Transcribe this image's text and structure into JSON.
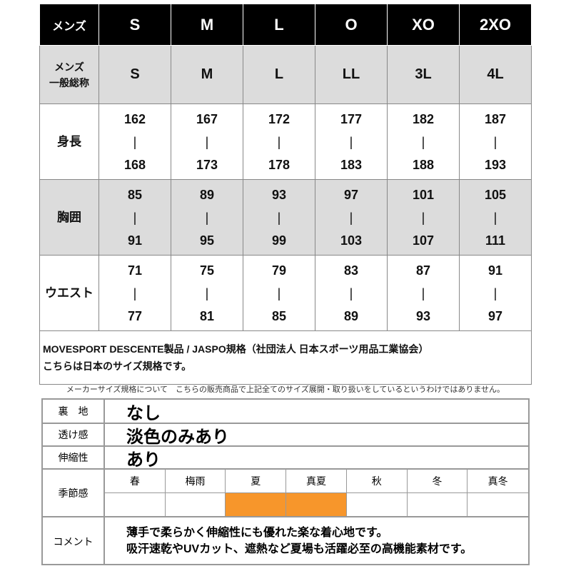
{
  "size_table": {
    "header": {
      "label": "メンズ",
      "sizes": [
        "S",
        "M",
        "L",
        "O",
        "XO",
        "2XO"
      ]
    },
    "general": {
      "label_line1": "メンズ",
      "label_line2": "一般総称",
      "sizes": [
        "S",
        "M",
        "L",
        "LL",
        "3L",
        "4L"
      ]
    },
    "rows": [
      {
        "label": "身長",
        "min": [
          "162",
          "167",
          "172",
          "177",
          "182",
          "187"
        ],
        "max": [
          "168",
          "173",
          "178",
          "183",
          "188",
          "193"
        ]
      },
      {
        "label": "胸囲",
        "min": [
          "85",
          "89",
          "93",
          "97",
          "101",
          "105"
        ],
        "max": [
          "91",
          "95",
          "99",
          "103",
          "107",
          "111"
        ]
      },
      {
        "label": "ウエスト",
        "min": [
          "71",
          "75",
          "79",
          "83",
          "87",
          "91"
        ],
        "max": [
          "77",
          "81",
          "85",
          "89",
          "93",
          "97"
        ]
      }
    ],
    "separator": "|",
    "note_line1": "MOVESPORT DESCENTE製品 / JASPO規格（社団法人 日本スポーツ用品工業協会）",
    "note_line2": "こちらは日本のサイズ規格です。"
  },
  "caption": "メーカーサイズ規格について　こちらの販売商品で上記全てのサイズ展開・取り扱いをしているというわけではありません。",
  "spec": {
    "lining": {
      "label": "裏　地",
      "value": "なし"
    },
    "sheer": {
      "label": "透け感",
      "value": "淡色のみあり"
    },
    "stretch": {
      "label": "伸縮性",
      "value": "あり"
    },
    "season": {
      "label": "季節感",
      "items": [
        {
          "name": "春",
          "active": false
        },
        {
          "name": "梅雨",
          "active": false
        },
        {
          "name": "夏",
          "active": true
        },
        {
          "name": "真夏",
          "active": true
        },
        {
          "name": "秋",
          "active": false
        },
        {
          "name": "冬",
          "active": false
        },
        {
          "name": "真冬",
          "active": false
        }
      ],
      "active_color": "#f7962b"
    },
    "comment": {
      "label": "コメント",
      "line1": "薄手で柔らかく伸縮性にも優れた楽な着心地です。",
      "line2": "吸汗速乾やUVカット、遮熱など夏場も活躍必至の高機能素材です。"
    }
  }
}
